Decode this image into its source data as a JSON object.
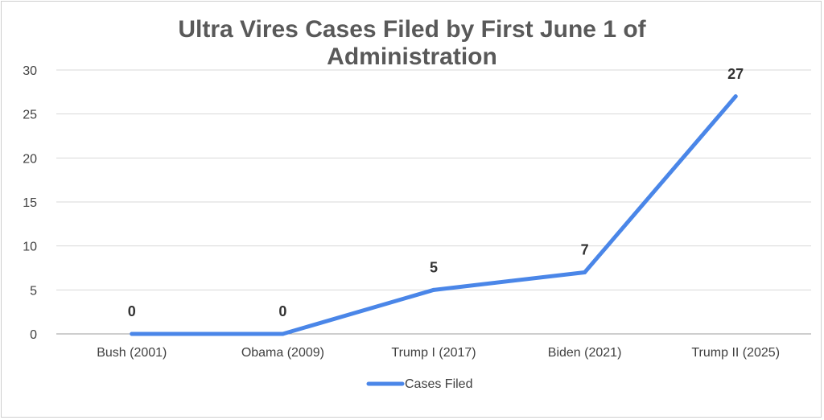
{
  "chart_data": {
    "type": "line",
    "title": "Ultra Vires Cases Filed by First June 1 of Administration",
    "title_lines": [
      "Ultra Vires Cases Filed by First June 1 of",
      "Administration"
    ],
    "categories": [
      "Bush (2001)",
      "Obama (2009)",
      "Trump I (2017)",
      "Biden (2021)",
      "Trump II (2025)"
    ],
    "series": [
      {
        "name": "Cases Filed",
        "values": [
          0,
          0,
          5,
          7,
          27
        ],
        "color": "#4a86e8"
      }
    ],
    "ylim": [
      0,
      30
    ],
    "yticks": [
      0,
      5,
      10,
      15,
      20,
      25,
      30
    ],
    "grid": true,
    "data_labels": true,
    "legend_position": "bottom"
  }
}
